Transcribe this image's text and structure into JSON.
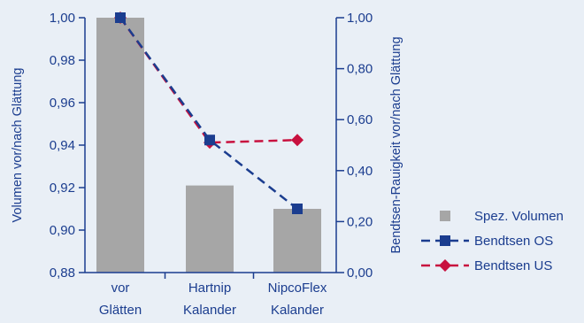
{
  "chart_data": {
    "type": "bar",
    "categories": [
      [
        "vor",
        "Glätten"
      ],
      [
        "Hartnip",
        "Kalander"
      ],
      [
        "NipcoFlex",
        "Kalander"
      ]
    ],
    "ylabel": "Volumen vor/nach Glättung",
    "y2label": "Bendtsen-Rauigkeit vor/nach Glättung",
    "ylim": [
      0.88,
      1.0
    ],
    "yticks": [
      "0,88",
      "0,90",
      "0,92",
      "0,94",
      "0,96",
      "0,98",
      "1,00"
    ],
    "y2lim": [
      0.0,
      1.0
    ],
    "y2ticks": [
      "0,00",
      "0,20",
      "0,40",
      "0,60",
      "0,80",
      "1,00"
    ],
    "grid": false,
    "legend_position": "right",
    "series": [
      {
        "name": "Spez. Volumen",
        "type": "bar",
        "axis": "left",
        "values": [
          1.0,
          0.921,
          0.91
        ],
        "color": "#a6a6a6"
      },
      {
        "name": "Bendtsen OS",
        "type": "line",
        "axis": "right",
        "dashed": true,
        "marker": "square",
        "values": [
          1.0,
          0.52,
          0.25
        ],
        "color": "#1b3d8f"
      },
      {
        "name": "Bendtsen US",
        "type": "line",
        "axis": "right",
        "dashed": true,
        "marker": "diamond",
        "values": [
          1.0,
          0.51,
          0.52
        ],
        "color": "#c8103e"
      }
    ],
    "axis_color": "#1b3d8f"
  }
}
